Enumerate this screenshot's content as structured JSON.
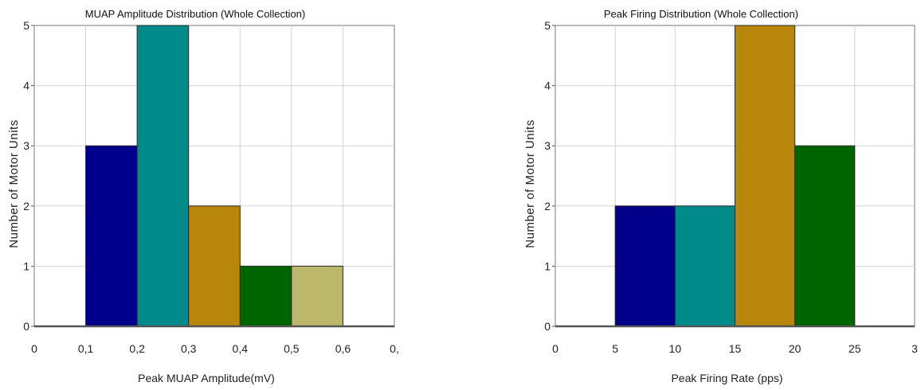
{
  "chart_data": [
    {
      "type": "bar",
      "title": "MUAP Amplitude Distribution (Whole Collection)",
      "xlabel": "Peak MUAP Amplitude(mV)",
      "ylabel": "Number of Motor Units",
      "xlim": [
        0,
        0.7
      ],
      "ylim": [
        0,
        5
      ],
      "xticks": [
        "0",
        "0,1",
        "0,2",
        "0,3",
        "0,4",
        "0,5",
        "0,6",
        "0,"
      ],
      "yticks": [
        "0",
        "1",
        "2",
        "3",
        "4",
        "5"
      ],
      "grid": true,
      "bins": [
        {
          "x0": 0.1,
          "x1": 0.2,
          "value": 3,
          "color": "#00008b"
        },
        {
          "x0": 0.2,
          "x1": 0.3,
          "value": 5,
          "color": "#008b8b"
        },
        {
          "x0": 0.3,
          "x1": 0.4,
          "value": 2,
          "color": "#b8860b"
        },
        {
          "x0": 0.4,
          "x1": 0.5,
          "value": 1,
          "color": "#006400"
        },
        {
          "x0": 0.5,
          "x1": 0.6,
          "value": 1,
          "color": "#bdb76b"
        }
      ]
    },
    {
      "type": "bar",
      "title": "Peak Firing Distribution (Whole Collection)",
      "xlabel": "Peak Firing Rate (pps)",
      "ylabel": "Number of Motor Units",
      "xlim": [
        0,
        30
      ],
      "ylim": [
        0,
        5
      ],
      "xticks": [
        "0",
        "5",
        "10",
        "15",
        "20",
        "25",
        "3"
      ],
      "yticks": [
        "0",
        "1",
        "2",
        "3",
        "4",
        "5"
      ],
      "grid": true,
      "bins": [
        {
          "x0": 5,
          "x1": 10,
          "value": 2,
          "color": "#00008b"
        },
        {
          "x0": 10,
          "x1": 15,
          "value": 2,
          "color": "#008b8b"
        },
        {
          "x0": 15,
          "x1": 20,
          "value": 5,
          "color": "#b8860b"
        },
        {
          "x0": 20,
          "x1": 25,
          "value": 3,
          "color": "#006400"
        }
      ]
    }
  ]
}
